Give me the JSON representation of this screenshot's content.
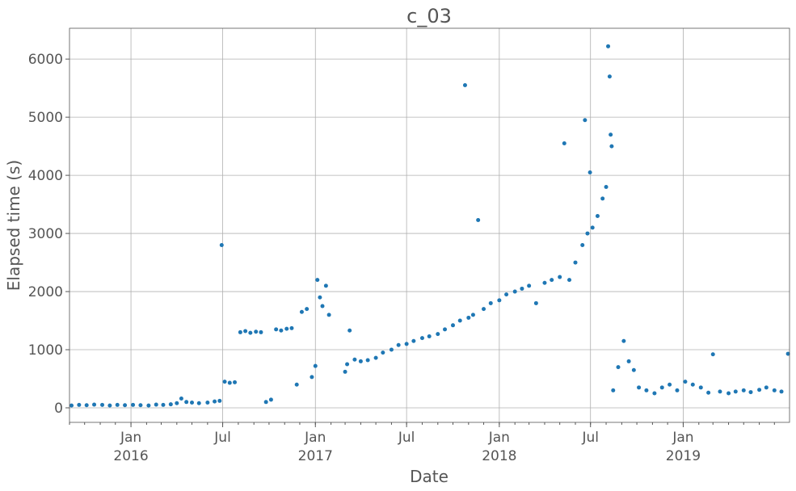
{
  "chart_data": {
    "type": "scatter",
    "title": "c_03",
    "xlabel": "Date",
    "ylabel": "Elapsed time (s)",
    "x_range": [
      "2015-09-01",
      "2019-07-31"
    ],
    "ylim": [
      -250,
      6530
    ],
    "grid": true,
    "marker_color": "#1f77b4",
    "y_ticks": [
      0,
      1000,
      2000,
      3000,
      4000,
      5000,
      6000
    ],
    "x_ticks": [
      {
        "date": "2016-01-01",
        "label": "Jan",
        "year": "2016"
      },
      {
        "date": "2016-07-01",
        "label": "Jul",
        "year": ""
      },
      {
        "date": "2017-01-01",
        "label": "Jan",
        "year": "2017"
      },
      {
        "date": "2017-07-01",
        "label": "Jul",
        "year": ""
      },
      {
        "date": "2018-01-01",
        "label": "Jan",
        "year": "2018"
      },
      {
        "date": "2018-07-01",
        "label": "Jul",
        "year": ""
      },
      {
        "date": "2019-01-01",
        "label": "Jan",
        "year": "2019"
      }
    ],
    "points": [
      [
        "2015-09-05",
        40
      ],
      [
        "2015-09-20",
        50
      ],
      [
        "2015-10-05",
        45
      ],
      [
        "2015-10-20",
        55
      ],
      [
        "2015-11-05",
        50
      ],
      [
        "2015-11-20",
        40
      ],
      [
        "2015-12-05",
        50
      ],
      [
        "2015-12-20",
        45
      ],
      [
        "2016-01-05",
        50
      ],
      [
        "2016-01-20",
        45
      ],
      [
        "2016-02-05",
        40
      ],
      [
        "2016-02-20",
        55
      ],
      [
        "2016-03-05",
        50
      ],
      [
        "2016-03-20",
        60
      ],
      [
        "2016-04-01",
        80
      ],
      [
        "2016-04-10",
        160
      ],
      [
        "2016-04-20",
        100
      ],
      [
        "2016-05-01",
        90
      ],
      [
        "2016-05-15",
        80
      ],
      [
        "2016-06-01",
        90
      ],
      [
        "2016-06-15",
        110
      ],
      [
        "2016-06-25",
        120
      ],
      [
        "2016-06-29",
        2800
      ],
      [
        "2016-07-05",
        450
      ],
      [
        "2016-07-15",
        430
      ],
      [
        "2016-07-25",
        440
      ],
      [
        "2016-08-05",
        1300
      ],
      [
        "2016-08-15",
        1320
      ],
      [
        "2016-08-25",
        1290
      ],
      [
        "2016-09-05",
        1310
      ],
      [
        "2016-09-15",
        1300
      ],
      [
        "2016-09-25",
        100
      ],
      [
        "2016-10-05",
        140
      ],
      [
        "2016-10-15",
        1350
      ],
      [
        "2016-10-25",
        1330
      ],
      [
        "2016-11-05",
        1360
      ],
      [
        "2016-11-15",
        1370
      ],
      [
        "2016-11-25",
        400
      ],
      [
        "2016-12-05",
        1650
      ],
      [
        "2016-12-15",
        1700
      ],
      [
        "2016-12-25",
        530
      ],
      [
        "2017-01-01",
        720
      ],
      [
        "2017-01-05",
        2200
      ],
      [
        "2017-01-10",
        1900
      ],
      [
        "2017-01-15",
        1750
      ],
      [
        "2017-01-22",
        2100
      ],
      [
        "2017-01-28",
        1600
      ],
      [
        "2017-03-01",
        620
      ],
      [
        "2017-03-05",
        750
      ],
      [
        "2017-03-10",
        1330
      ],
      [
        "2017-03-20",
        830
      ],
      [
        "2017-04-01",
        800
      ],
      [
        "2017-04-15",
        820
      ],
      [
        "2017-05-01",
        860
      ],
      [
        "2017-05-15",
        950
      ],
      [
        "2017-06-01",
        1000
      ],
      [
        "2017-06-15",
        1080
      ],
      [
        "2017-07-01",
        1100
      ],
      [
        "2017-07-15",
        1150
      ],
      [
        "2017-08-01",
        1200
      ],
      [
        "2017-08-15",
        1230
      ],
      [
        "2017-09-01",
        1270
      ],
      [
        "2017-09-15",
        1350
      ],
      [
        "2017-10-01",
        1420
      ],
      [
        "2017-10-15",
        1500
      ],
      [
        "2017-10-25",
        5550
      ],
      [
        "2017-11-01",
        1550
      ],
      [
        "2017-11-10",
        1600
      ],
      [
        "2017-11-20",
        3230
      ],
      [
        "2017-12-01",
        1700
      ],
      [
        "2017-12-15",
        1800
      ],
      [
        "2018-01-01",
        1850
      ],
      [
        "2018-01-15",
        1950
      ],
      [
        "2018-02-01",
        2000
      ],
      [
        "2018-02-15",
        2050
      ],
      [
        "2018-03-01",
        2100
      ],
      [
        "2018-03-15",
        1800
      ],
      [
        "2018-04-01",
        2150
      ],
      [
        "2018-04-15",
        2200
      ],
      [
        "2018-05-01",
        2250
      ],
      [
        "2018-05-10",
        4550
      ],
      [
        "2018-05-20",
        2200
      ],
      [
        "2018-06-01",
        2500
      ],
      [
        "2018-06-15",
        2800
      ],
      [
        "2018-06-20",
        4950
      ],
      [
        "2018-06-25",
        3000
      ],
      [
        "2018-06-30",
        4050
      ],
      [
        "2018-07-05",
        3100
      ],
      [
        "2018-07-15",
        3300
      ],
      [
        "2018-07-25",
        3600
      ],
      [
        "2018-08-01",
        3800
      ],
      [
        "2018-08-05",
        6220
      ],
      [
        "2018-08-08",
        5700
      ],
      [
        "2018-08-10",
        4700
      ],
      [
        "2018-08-12",
        4500
      ],
      [
        "2018-08-15",
        300
      ],
      [
        "2018-08-25",
        700
      ],
      [
        "2018-09-05",
        1150
      ],
      [
        "2018-09-15",
        800
      ],
      [
        "2018-09-25",
        650
      ],
      [
        "2018-10-05",
        350
      ],
      [
        "2018-10-20",
        300
      ],
      [
        "2018-11-05",
        250
      ],
      [
        "2018-11-20",
        350
      ],
      [
        "2018-12-05",
        400
      ],
      [
        "2018-12-20",
        300
      ],
      [
        "2019-01-05",
        450
      ],
      [
        "2019-01-20",
        400
      ],
      [
        "2019-02-05",
        350
      ],
      [
        "2019-02-20",
        260
      ],
      [
        "2019-03-01",
        920
      ],
      [
        "2019-03-15",
        280
      ],
      [
        "2019-04-01",
        250
      ],
      [
        "2019-04-15",
        280
      ],
      [
        "2019-05-01",
        300
      ],
      [
        "2019-05-15",
        270
      ],
      [
        "2019-06-01",
        310
      ],
      [
        "2019-06-15",
        350
      ],
      [
        "2019-07-01",
        300
      ],
      [
        "2019-07-15",
        280
      ],
      [
        "2019-07-28",
        930
      ]
    ]
  }
}
